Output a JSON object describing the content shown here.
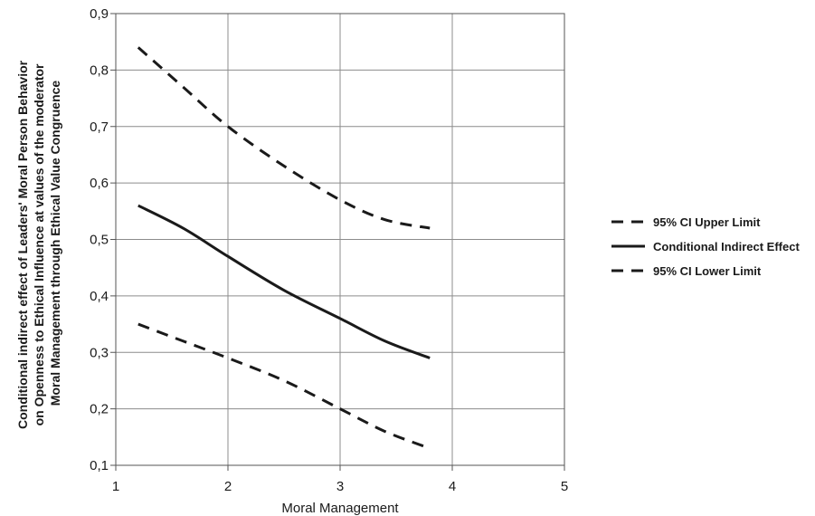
{
  "chart_data": {
    "type": "line",
    "xlabel": "Moral Management",
    "ylabel_lines": [
      "Conditional indirect effect of Leaders' Moral Person Behavior",
      "on Openness to Ethical Influence at values of the moderator",
      "Moral Management through Ethical Value Congruence"
    ],
    "xlim": [
      1,
      5
    ],
    "ylim": [
      0.1,
      0.9
    ],
    "x_ticks": [
      1,
      2,
      3,
      4,
      5
    ],
    "x_tick_labels": [
      "1",
      "2",
      "3",
      "4",
      "5"
    ],
    "y_ticks": [
      0.1,
      0.2,
      0.3,
      0.4,
      0.5,
      0.6,
      0.7,
      0.8,
      0.9
    ],
    "y_tick_labels": [
      "0,1",
      "0,2",
      "0,3",
      "0,4",
      "0,5",
      "0,6",
      "0,7",
      "0,8",
      "0,9"
    ],
    "grid": true,
    "legend_position": "right",
    "series": [
      {
        "name": "95% CI Upper Limit",
        "style": "dashed",
        "color": "#1a1a1a",
        "x": [
          1.2,
          1.6,
          2.0,
          2.5,
          3.0,
          3.4,
          3.8
        ],
        "y": [
          0.84,
          0.77,
          0.7,
          0.63,
          0.57,
          0.535,
          0.52
        ]
      },
      {
        "name": "Conditional Indirect Effect",
        "style": "solid",
        "color": "#1a1a1a",
        "x": [
          1.2,
          1.6,
          2.0,
          2.5,
          3.0,
          3.4,
          3.8
        ],
        "y": [
          0.56,
          0.52,
          0.47,
          0.41,
          0.36,
          0.32,
          0.29
        ]
      },
      {
        "name": "95% CI Lower Limit",
        "style": "dashed",
        "color": "#1a1a1a",
        "x": [
          1.2,
          1.6,
          2.0,
          2.5,
          3.0,
          3.4,
          3.8
        ],
        "y": [
          0.35,
          0.32,
          0.29,
          0.25,
          0.2,
          0.16,
          0.13
        ]
      }
    ]
  }
}
